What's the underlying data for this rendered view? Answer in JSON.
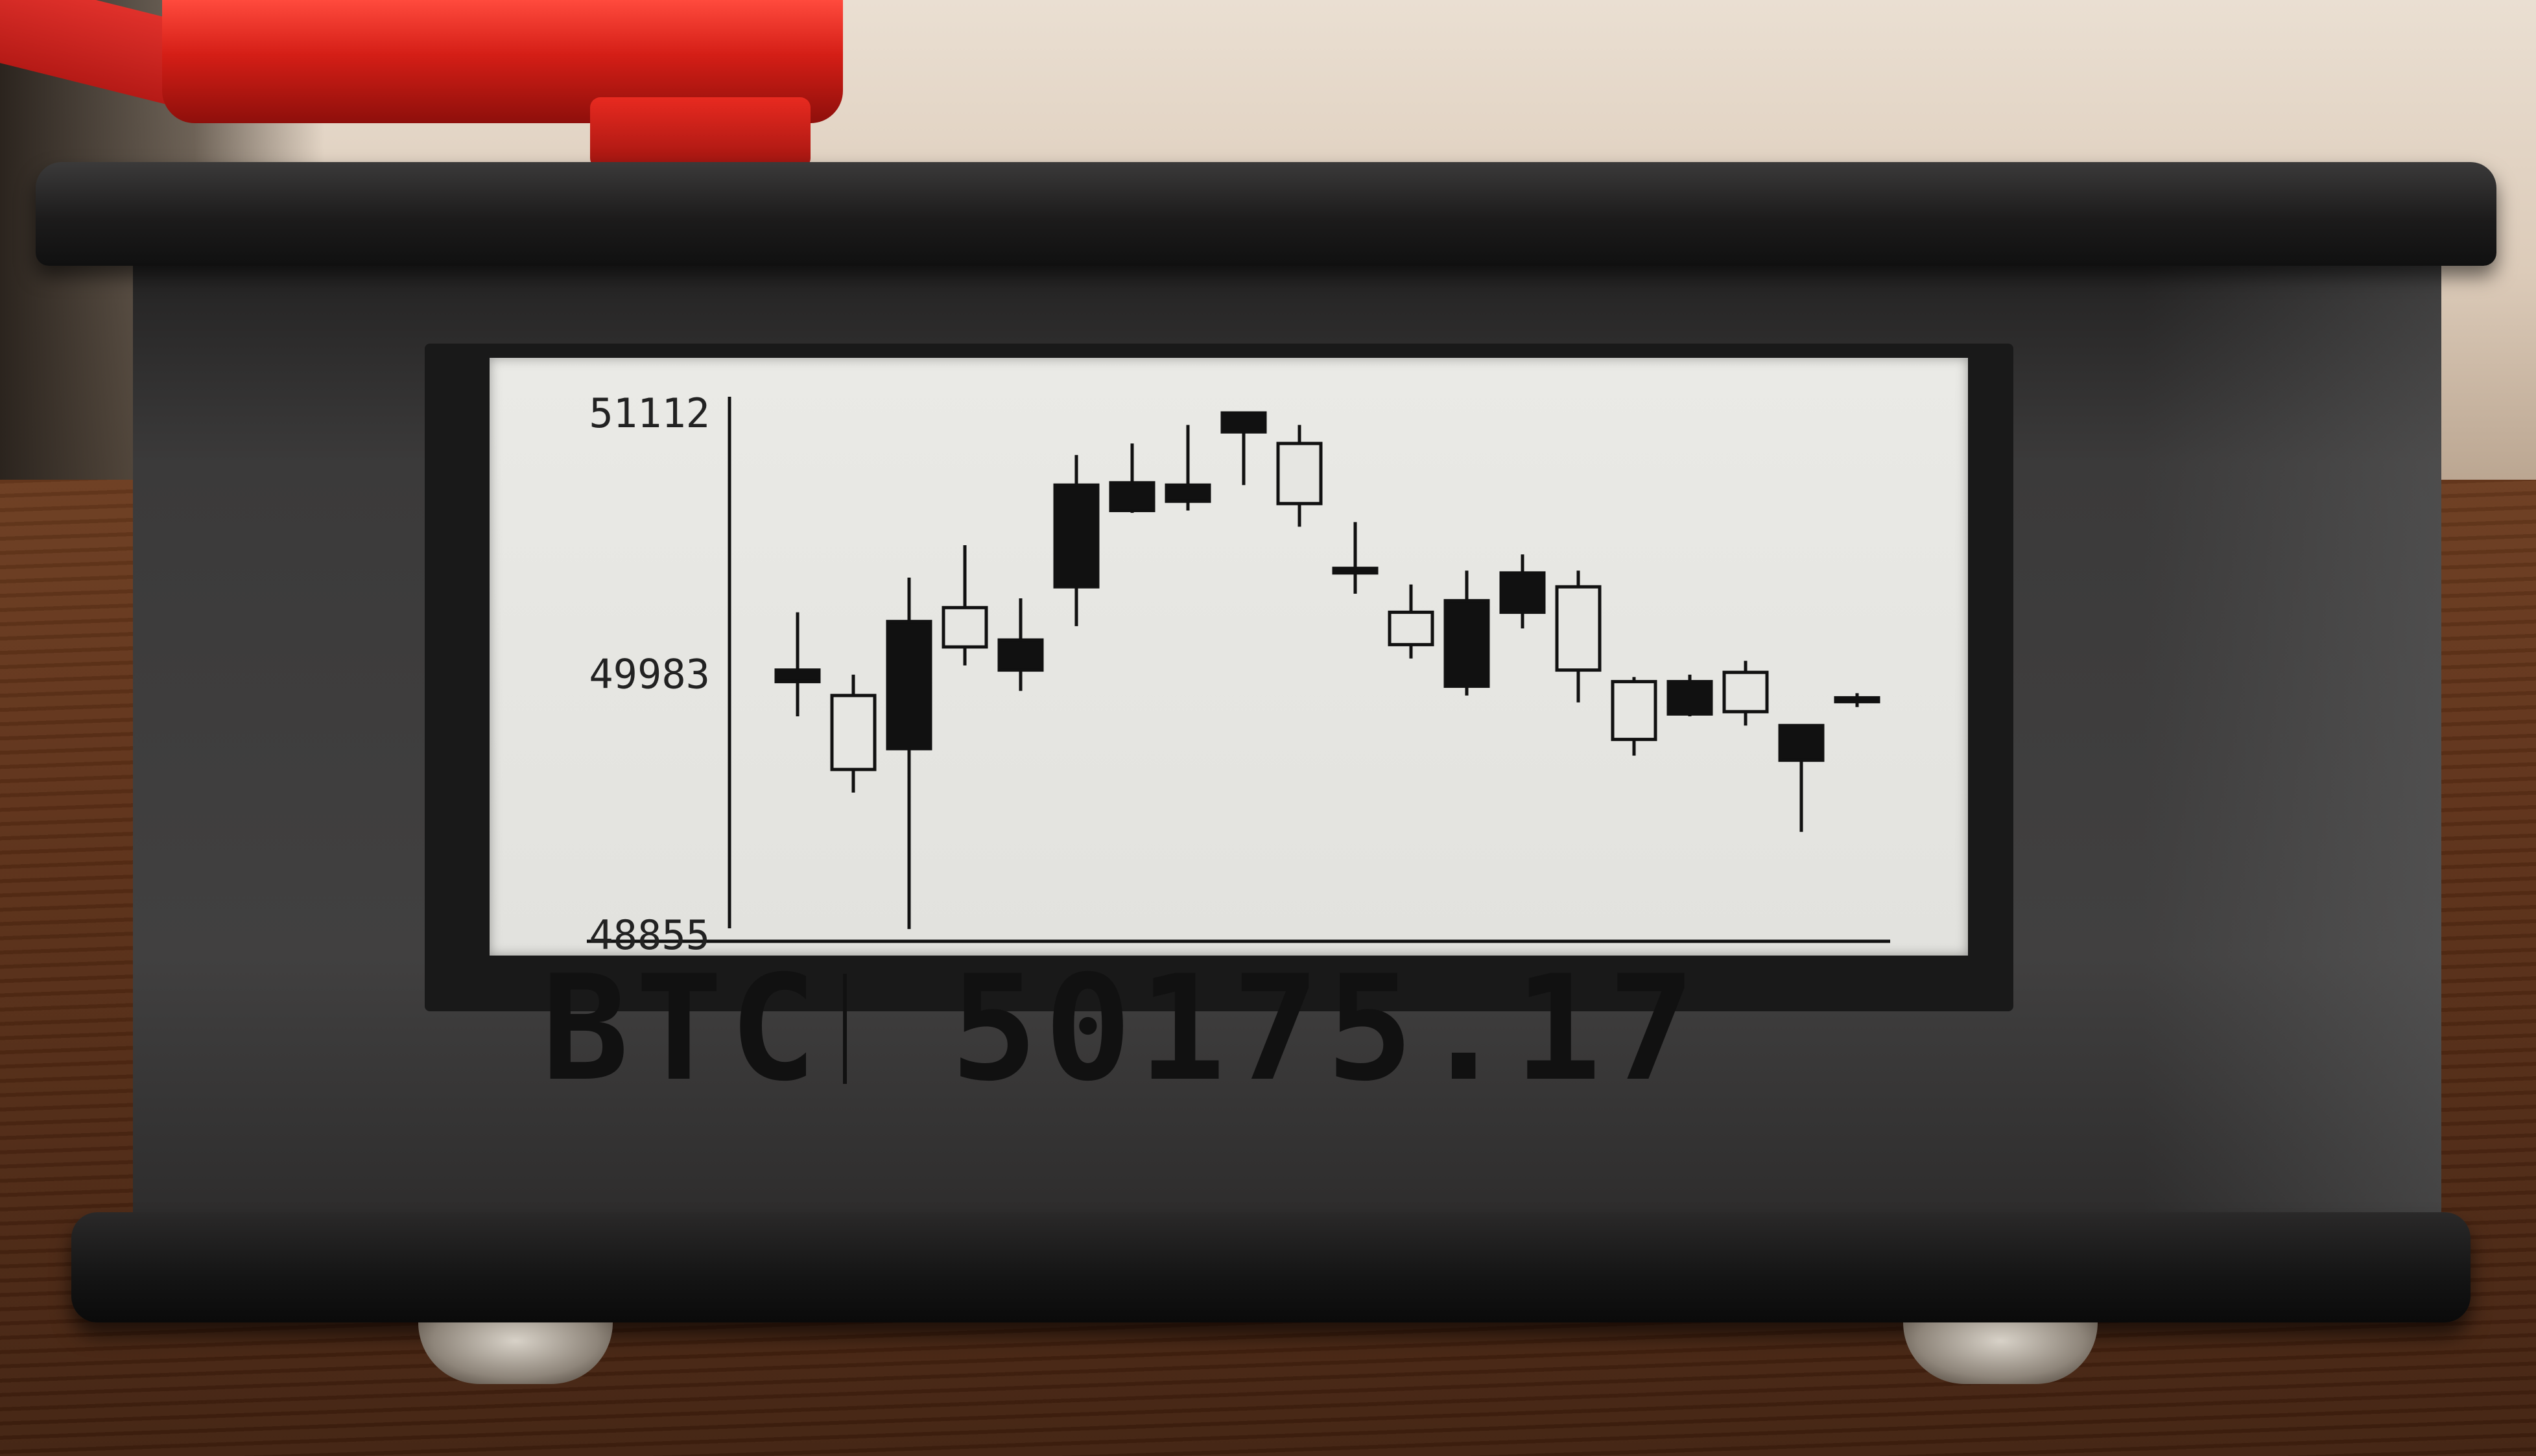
{
  "display": {
    "ticker": "BTC",
    "price": "50175.17"
  },
  "chart_data": {
    "type": "candlestick",
    "ylim": [
      48855,
      51112
    ],
    "tick_labels": [
      "51112",
      "49983",
      "48855"
    ],
    "candles": [
      {
        "open": 50000,
        "high": 50250,
        "low": 49800,
        "close": 49950,
        "filled": true
      },
      {
        "open": 49570,
        "high": 49980,
        "low": 49470,
        "close": 49890,
        "filled": false
      },
      {
        "open": 50210,
        "high": 50400,
        "low": 48880,
        "close": 49660,
        "filled": true
      },
      {
        "open": 50100,
        "high": 50540,
        "low": 50020,
        "close": 50270,
        "filled": false
      },
      {
        "open": 50130,
        "high": 50310,
        "low": 49910,
        "close": 50000,
        "filled": true
      },
      {
        "open": 50800,
        "high": 50930,
        "low": 50190,
        "close": 50360,
        "filled": true
      },
      {
        "open": 50810,
        "high": 50980,
        "low": 50680,
        "close": 50690,
        "filled": true
      },
      {
        "open": 50800,
        "high": 51060,
        "low": 50690,
        "close": 50730,
        "filled": true
      },
      {
        "open": 51112,
        "high": 51112,
        "low": 50800,
        "close": 51030,
        "filled": true
      },
      {
        "open": 50720,
        "high": 51060,
        "low": 50620,
        "close": 50980,
        "filled": false
      },
      {
        "open": 50440,
        "high": 50640,
        "low": 50330,
        "close": 50420,
        "filled": true
      },
      {
        "open": 50110,
        "high": 50370,
        "low": 50050,
        "close": 50250,
        "filled": false
      },
      {
        "open": 50300,
        "high": 50430,
        "low": 49890,
        "close": 49930,
        "filled": true
      },
      {
        "open": 50420,
        "high": 50500,
        "low": 50180,
        "close": 50250,
        "filled": true
      },
      {
        "open": 50000,
        "high": 50430,
        "low": 49860,
        "close": 50360,
        "filled": false
      },
      {
        "open": 49700,
        "high": 49970,
        "low": 49630,
        "close": 49950,
        "filled": false
      },
      {
        "open": 49950,
        "high": 49980,
        "low": 49800,
        "close": 49810,
        "filled": true
      },
      {
        "open": 49820,
        "high": 50040,
        "low": 49760,
        "close": 49990,
        "filled": false
      },
      {
        "open": 49760,
        "high": 49760,
        "low": 49300,
        "close": 49610,
        "filled": true
      },
      {
        "open": 49880,
        "high": 49900,
        "low": 49840,
        "close": 49875,
        "filled": true
      }
    ]
  },
  "colors": {
    "ink": "#111111",
    "paper": "#e6e6e2",
    "device_case": "#3b3a3a"
  }
}
